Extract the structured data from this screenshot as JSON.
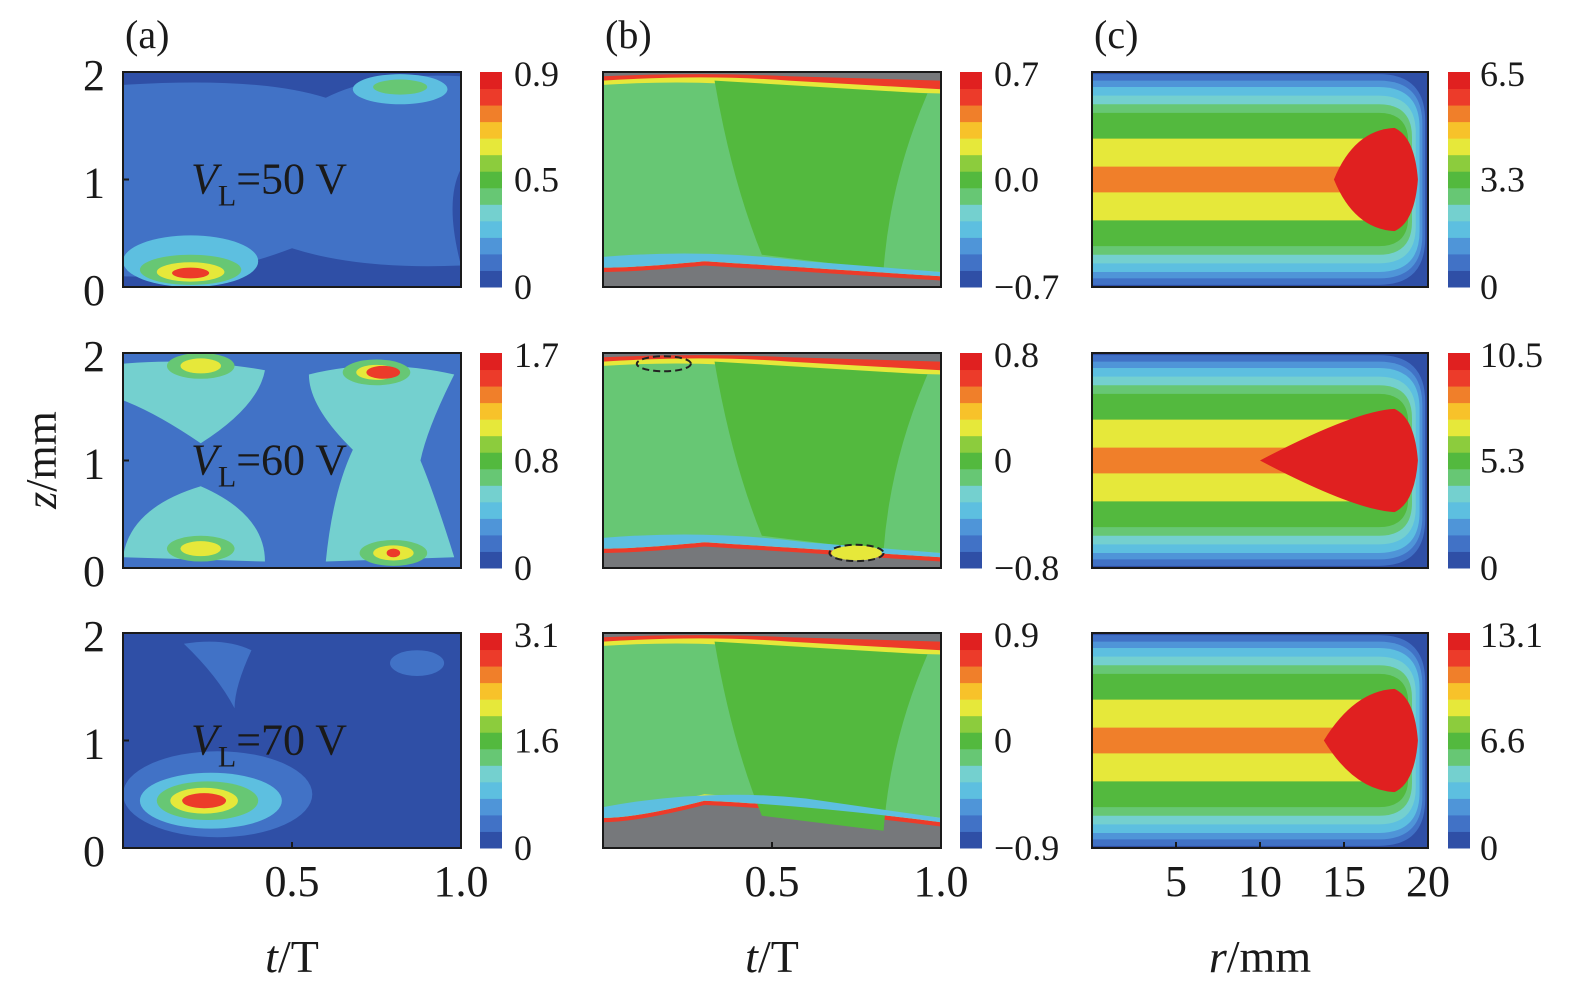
{
  "figure": {
    "colors": {
      "scale": [
        "#2f4fa6",
        "#4172c6",
        "#4f95d8",
        "#5dbfe0",
        "#74d0cf",
        "#67c774",
        "#53b93e",
        "#8ccc3d",
        "#e6e83a",
        "#f7c22a",
        "#f07f2a",
        "#ec3b2a",
        "#e02020"
      ],
      "bg_dark": "#2f4fa6",
      "bg_mid": "#4172c6",
      "field_green_light": "#67c774",
      "field_green": "#53b93e",
      "sheath_gray": "#76787b"
    },
    "texts": {
      "y_axis_label_italic": "z",
      "y_axis_label_unit": "/mm",
      "x_axis_label_a_italic": "t",
      "x_axis_label_a_unit": "/T",
      "x_axis_label_b_italic": "t",
      "x_axis_label_b_unit": "/T",
      "x_axis_label_c_italic": "r",
      "x_axis_label_c_unit": "/mm"
    }
  },
  "chart_data": [
    {
      "type": "heatmap",
      "panel": "(a)",
      "row": 0,
      "annotation_italic": "V",
      "annotation_sub": "L",
      "annotation_rest": "=50 V",
      "yticks": [
        "2",
        "1",
        "0"
      ],
      "xticks": [],
      "colorbar": {
        "top": "0.9",
        "mid": "0.5",
        "bottom": "0"
      },
      "xlim": [
        0,
        1.0
      ],
      "ylim": [
        0,
        2
      ]
    },
    {
      "type": "heatmap",
      "panel": "(b)",
      "row": 0,
      "yticks": [],
      "xticks": [],
      "colorbar": {
        "top": "0.7",
        "mid": "0.0",
        "bottom": "−0.7"
      },
      "xlim": [
        0,
        1.0
      ],
      "ylim": [
        0,
        2
      ]
    },
    {
      "type": "heatmap",
      "panel": "(c)",
      "row": 0,
      "yticks": [],
      "xticks": [],
      "colorbar": {
        "top": "6.5",
        "mid": "3.3",
        "bottom": "0"
      },
      "xlim": [
        0,
        20
      ],
      "ylim": [
        0,
        2
      ]
    },
    {
      "type": "heatmap",
      "row": 1,
      "annotation_italic": "V",
      "annotation_sub": "L",
      "annotation_rest": "=60 V",
      "yticks": [
        "2",
        "1",
        "0"
      ],
      "xticks": [],
      "colorbar": {
        "top": "1.7",
        "mid": "0.8",
        "bottom": "0"
      },
      "xlim": [
        0,
        1.0
      ],
      "ylim": [
        0,
        2
      ]
    },
    {
      "type": "heatmap",
      "row": 1,
      "yticks": [],
      "xticks": [],
      "colorbar": {
        "top": "0.8",
        "mid": "0",
        "bottom": "−0.8"
      },
      "xlim": [
        0,
        1.0
      ],
      "ylim": [
        0,
        2
      ]
    },
    {
      "type": "heatmap",
      "row": 1,
      "yticks": [],
      "xticks": [],
      "colorbar": {
        "top": "10.5",
        "mid": "5.3",
        "bottom": "0"
      },
      "xlim": [
        0,
        20
      ],
      "ylim": [
        0,
        2
      ]
    },
    {
      "type": "heatmap",
      "row": 2,
      "annotation_italic": "V",
      "annotation_sub": "L",
      "annotation_rest": "=70 V",
      "yticks": [
        "2",
        "1",
        "0"
      ],
      "xticks": [
        "0.5",
        "1.0"
      ],
      "colorbar": {
        "top": "3.1",
        "mid": "1.6",
        "bottom": "0"
      },
      "xlim": [
        0,
        1.0
      ],
      "ylim": [
        0,
        2
      ]
    },
    {
      "type": "heatmap",
      "row": 2,
      "yticks": [],
      "xticks": [
        "0.5",
        "1.0"
      ],
      "colorbar": {
        "top": "0.9",
        "mid": "0",
        "bottom": "−0.9"
      },
      "xlim": [
        0,
        1.0
      ],
      "ylim": [
        0,
        2
      ]
    },
    {
      "type": "heatmap",
      "row": 2,
      "yticks": [],
      "xticks": [
        "5",
        "10",
        "15",
        "20"
      ],
      "colorbar": {
        "top": "13.1",
        "mid": "6.6",
        "bottom": "0"
      },
      "xlim": [
        0,
        20
      ],
      "ylim": [
        0,
        2
      ]
    }
  ]
}
